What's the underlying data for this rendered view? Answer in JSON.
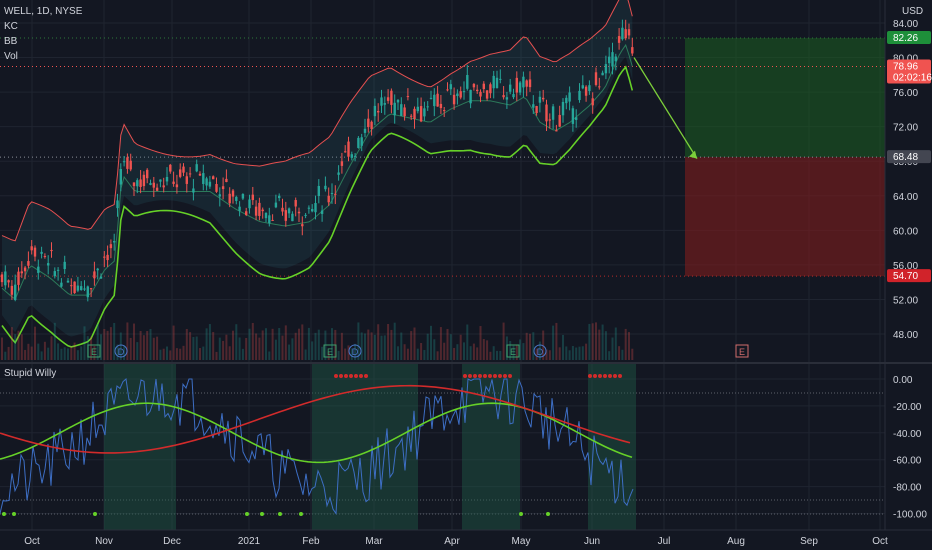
{
  "header": {
    "symbol": "WELL, 1D, NYSE",
    "indicators": [
      "KC",
      "BB",
      "Vol"
    ],
    "currency": "USD"
  },
  "lower_panel": {
    "title": "Stupid Willy"
  },
  "price_axis": {
    "ticks": [
      "84.00",
      "80.00",
      "76.00",
      "72.00",
      "68.00",
      "64.00",
      "60.00",
      "56.00",
      "52.00",
      "48.00"
    ],
    "tags": [
      {
        "name": "target",
        "text": "82.26",
        "color": "#1e8f3a"
      },
      {
        "name": "last-price",
        "text": "78.96",
        "sub": "02:02:16",
        "color": "#f05350"
      },
      {
        "name": "entry",
        "text": "68.48",
        "color": "#434651"
      },
      {
        "name": "stop",
        "text": "54.70",
        "color": "#d1232a"
      }
    ]
  },
  "osc_axis": {
    "ticks": [
      "0.00",
      "-20.00",
      "-40.00",
      "-60.00",
      "-80.00",
      "-100.00"
    ]
  },
  "time_axis": {
    "ticks": [
      "Oct",
      "Nov",
      "Dec",
      "2021",
      "Feb",
      "Mar",
      "Apr",
      "May",
      "Jun",
      "Jul",
      "Aug",
      "Sep",
      "Oct"
    ]
  },
  "event_markers": [
    "E",
    "D",
    "E",
    "D",
    "E",
    "D",
    "E"
  ],
  "colors": {
    "background": "#131722",
    "up_candle": "#26a69a",
    "down_candle": "#ef5350",
    "keltner_channel": "#e55050",
    "bollinger_lower": "#66d128",
    "profit_zone": "#1b5e20",
    "loss_zone": "#7f1d1d",
    "projection_arrow": "#7ccf3a",
    "osc_fast": "#3d6ec4",
    "osc_slow_green": "#66d128",
    "osc_slow_red": "#d22b2b"
  }
}
